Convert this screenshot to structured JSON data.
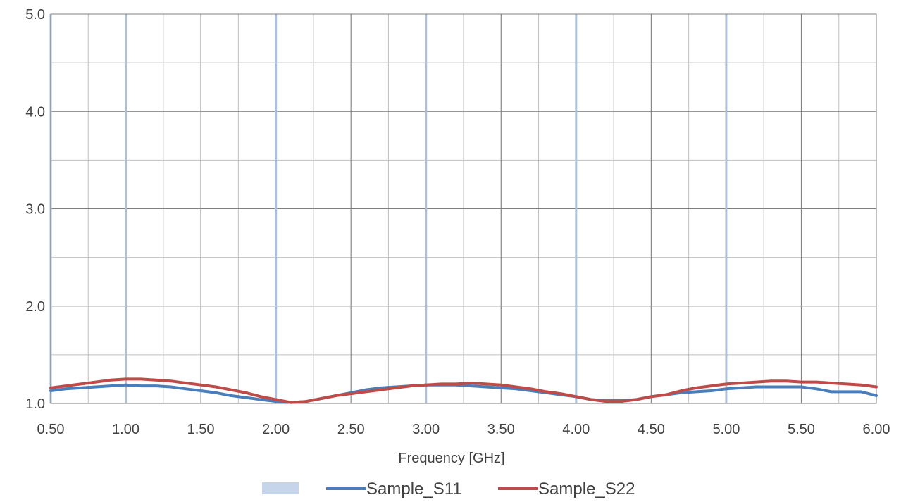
{
  "chart_data": {
    "type": "line",
    "xlabel": "Frequency [GHz]",
    "ylabel": "",
    "title": "",
    "xlim": [
      0.5,
      6.0
    ],
    "ylim": [
      1.0,
      5.0
    ],
    "x_ticks": [
      "0.50",
      "1.00",
      "1.50",
      "2.00",
      "2.50",
      "3.00",
      "3.50",
      "4.00",
      "4.50",
      "5.00",
      "5.50",
      "6.00"
    ],
    "y_ticks": [
      "1.0",
      "2.0",
      "3.0",
      "4.0",
      "5.0"
    ],
    "grid": true,
    "legend_position": "bottom",
    "highlight_lines_x": [
      0.5,
      1.0,
      2.0,
      3.0,
      4.0,
      5.0
    ],
    "highlight_color": "#adc0d9",
    "legend_extra": {
      "name": "",
      "color": "#c6d5e9"
    },
    "series": [
      {
        "name": "Sample_S11",
        "color": "#4a7ebb",
        "x": [
          0.5,
          0.6,
          0.7,
          0.8,
          0.9,
          1.0,
          1.1,
          1.2,
          1.3,
          1.4,
          1.5,
          1.6,
          1.7,
          1.8,
          1.9,
          2.0,
          2.1,
          2.2,
          2.3,
          2.4,
          2.5,
          2.6,
          2.7,
          2.8,
          2.9,
          3.0,
          3.1,
          3.2,
          3.3,
          3.4,
          3.5,
          3.6,
          3.7,
          3.8,
          3.9,
          4.0,
          4.1,
          4.2,
          4.3,
          4.4,
          4.5,
          4.6,
          4.7,
          4.8,
          4.9,
          5.0,
          5.1,
          5.2,
          5.3,
          5.4,
          5.5,
          5.6,
          5.7,
          5.8,
          5.9,
          6.0
        ],
        "values": [
          1.13,
          1.15,
          1.16,
          1.17,
          1.18,
          1.19,
          1.18,
          1.18,
          1.17,
          1.15,
          1.13,
          1.11,
          1.08,
          1.06,
          1.04,
          1.02,
          1.01,
          1.02,
          1.05,
          1.08,
          1.11,
          1.14,
          1.16,
          1.17,
          1.18,
          1.19,
          1.19,
          1.19,
          1.18,
          1.17,
          1.16,
          1.15,
          1.13,
          1.11,
          1.09,
          1.07,
          1.04,
          1.03,
          1.03,
          1.04,
          1.07,
          1.09,
          1.11,
          1.12,
          1.13,
          1.15,
          1.16,
          1.17,
          1.17,
          1.17,
          1.17,
          1.15,
          1.12,
          1.12,
          1.12,
          1.08
        ]
      },
      {
        "name": "Sample_S22",
        "color": "#be4b48",
        "x": [
          0.5,
          0.6,
          0.7,
          0.8,
          0.9,
          1.0,
          1.1,
          1.2,
          1.3,
          1.4,
          1.5,
          1.6,
          1.7,
          1.8,
          1.9,
          2.0,
          2.1,
          2.2,
          2.3,
          2.4,
          2.5,
          2.6,
          2.7,
          2.8,
          2.9,
          3.0,
          3.1,
          3.2,
          3.3,
          3.4,
          3.5,
          3.6,
          3.7,
          3.8,
          3.9,
          4.0,
          4.1,
          4.2,
          4.3,
          4.4,
          4.5,
          4.6,
          4.7,
          4.8,
          4.9,
          5.0,
          5.1,
          5.2,
          5.3,
          5.4,
          5.5,
          5.6,
          5.7,
          5.8,
          5.9,
          6.0
        ],
        "values": [
          1.16,
          1.18,
          1.2,
          1.22,
          1.24,
          1.25,
          1.25,
          1.24,
          1.23,
          1.21,
          1.19,
          1.17,
          1.14,
          1.11,
          1.07,
          1.04,
          1.01,
          1.02,
          1.05,
          1.08,
          1.1,
          1.12,
          1.14,
          1.16,
          1.18,
          1.19,
          1.2,
          1.2,
          1.21,
          1.2,
          1.19,
          1.17,
          1.15,
          1.12,
          1.1,
          1.07,
          1.04,
          1.02,
          1.02,
          1.04,
          1.07,
          1.09,
          1.13,
          1.16,
          1.18,
          1.2,
          1.21,
          1.22,
          1.23,
          1.23,
          1.22,
          1.22,
          1.21,
          1.2,
          1.19,
          1.17
        ]
      }
    ]
  }
}
